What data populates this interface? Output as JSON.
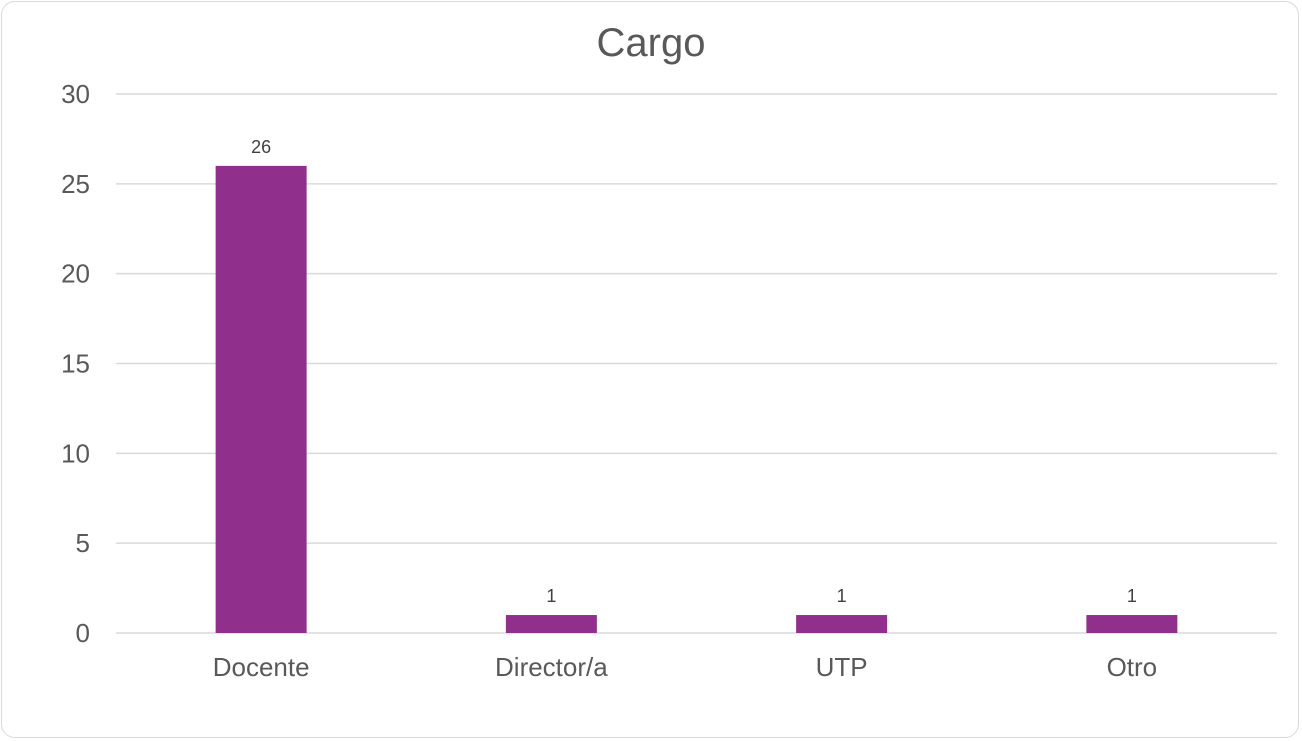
{
  "chart_data": {
    "type": "bar",
    "title": "Cargo",
    "categories": [
      "Docente",
      "Director/a",
      "UTP",
      "Otro"
    ],
    "values": [
      26,
      1,
      1,
      1
    ],
    "data_labels": [
      "26",
      "1",
      "1",
      "1"
    ],
    "xlabel": "",
    "ylabel": "",
    "ylim": [
      0,
      30
    ],
    "yticks": [
      0,
      5,
      10,
      15,
      20,
      25,
      30
    ],
    "ytick_labels": [
      "0",
      "5",
      "10",
      "15",
      "20",
      "25",
      "30"
    ],
    "grid": true,
    "legend": "none",
    "bar_color": "#91308c"
  }
}
